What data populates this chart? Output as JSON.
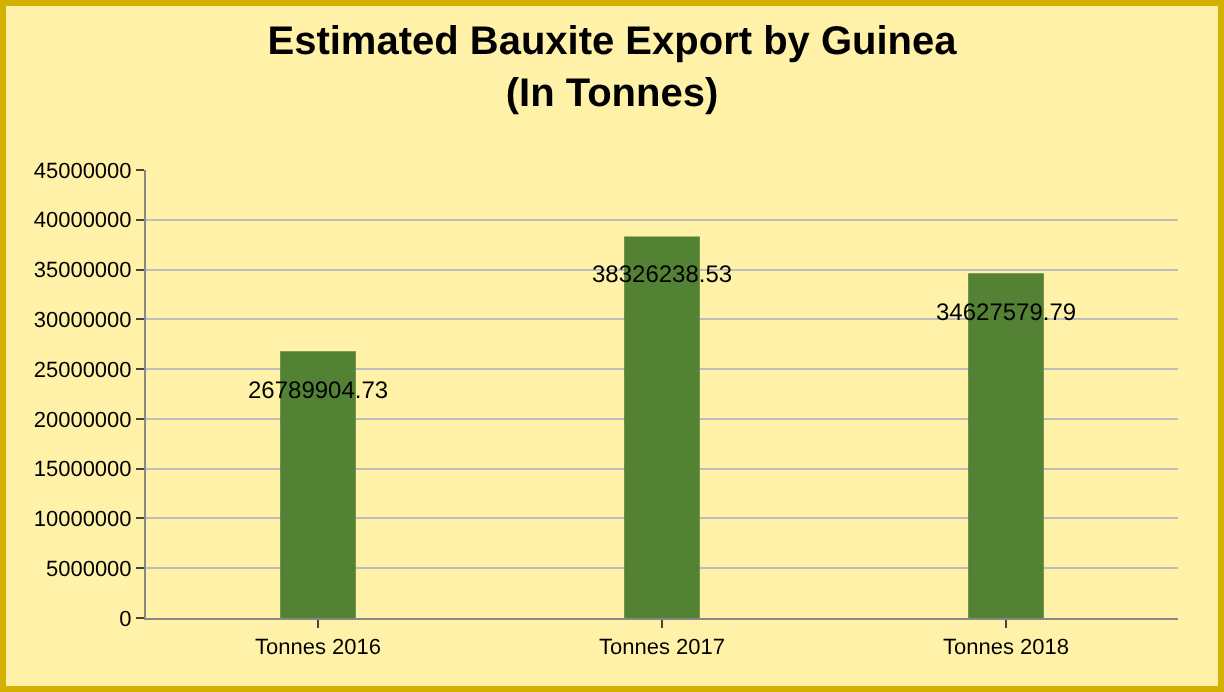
{
  "chart_data": {
    "type": "bar",
    "title": "Estimated Bauxite Export by Guinea\n(In Tonnes)",
    "categories": [
      "Tonnes 2016",
      "Tonnes 2017",
      "Tonnes 2018"
    ],
    "values": [
      26789904.73,
      38326238.53,
      34627579.79
    ],
    "color": "#548235",
    "ylim": [
      0,
      45000000
    ],
    "yticks": [
      0,
      5000000,
      10000000,
      15000000,
      20000000,
      25000000,
      30000000,
      35000000,
      40000000,
      45000000
    ],
    "grid": "y",
    "data_labels": true
  }
}
